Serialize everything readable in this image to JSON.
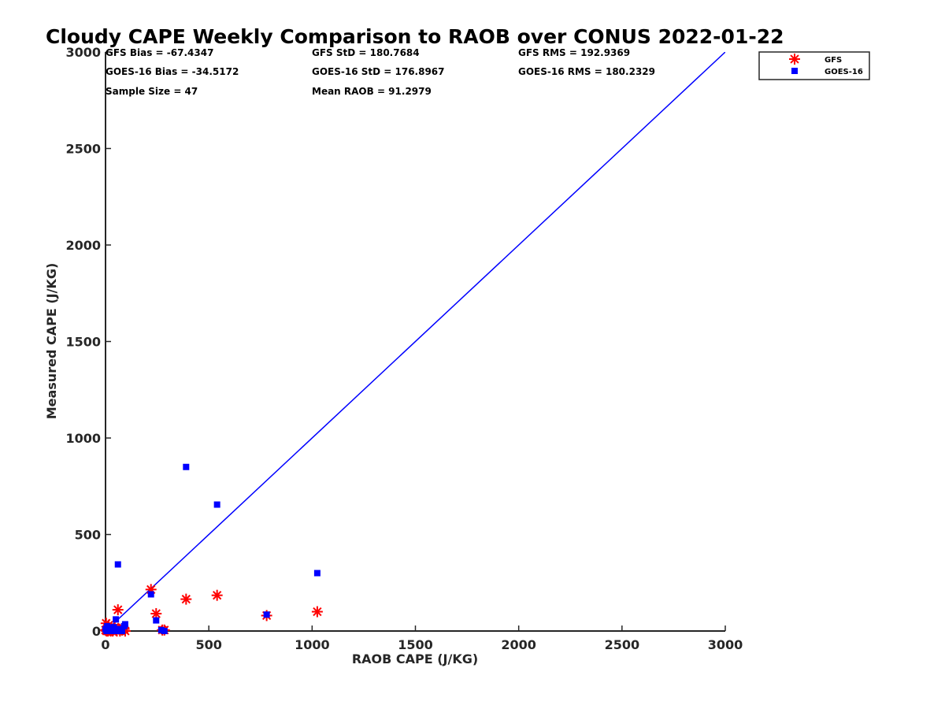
{
  "chart_data": {
    "type": "scatter",
    "title": "Cloudy CAPE Weekly Comparison to RAOB over CONUS 2022-01-22",
    "xlabel": "RAOB CAPE (J/KG)",
    "ylabel": "Measured CAPE (J/KG)",
    "xlim": [
      0,
      3000
    ],
    "ylim": [
      0,
      3000
    ],
    "x_ticks": [
      "0",
      "500",
      "1000",
      "1500",
      "2000",
      "2500",
      "3000"
    ],
    "y_ticks": [
      "0",
      "500",
      "1000",
      "1500",
      "2000",
      "2500",
      "3000"
    ],
    "grid": false,
    "legend_position": "top-right outside",
    "stats": [
      "GFS Bias = -67.4347",
      "GFS StD = 180.7684",
      "GFS RMS = 192.9369",
      "GOES-16 Bias = -34.5172",
      "GOES-16 StD = 176.8967",
      "GOES-16 RMS = 180.2329",
      "Sample Size = 47",
      "Mean RAOB = 91.2979"
    ],
    "reference_line": {
      "x": [
        0,
        3000
      ],
      "y": [
        0,
        3000
      ],
      "color": "#0000ff"
    },
    "series": [
      {
        "name": "GFS",
        "marker": "asterisk",
        "color": "#ff0000",
        "points": [
          [
            0,
            5
          ],
          [
            3,
            40
          ],
          [
            5,
            0
          ],
          [
            8,
            10
          ],
          [
            10,
            20
          ],
          [
            12,
            0
          ],
          [
            15,
            30
          ],
          [
            18,
            5
          ],
          [
            20,
            10
          ],
          [
            25,
            0
          ],
          [
            28,
            15
          ],
          [
            30,
            5
          ],
          [
            35,
            0
          ],
          [
            40,
            10
          ],
          [
            45,
            20
          ],
          [
            50,
            5
          ],
          [
            55,
            0
          ],
          [
            60,
            110
          ],
          [
            65,
            10
          ],
          [
            70,
            0
          ],
          [
            80,
            5
          ],
          [
            85,
            15
          ],
          [
            90,
            10
          ],
          [
            95,
            0
          ],
          [
            220,
            215
          ],
          [
            245,
            90
          ],
          [
            275,
            5
          ],
          [
            285,
            5
          ],
          [
            390,
            165
          ],
          [
            540,
            185
          ],
          [
            780,
            80
          ],
          [
            1025,
            100
          ]
        ]
      },
      {
        "name": "GOES-16",
        "marker": "square",
        "color": "#0000ff",
        "points": [
          [
            0,
            10
          ],
          [
            5,
            0
          ],
          [
            8,
            25
          ],
          [
            10,
            5
          ],
          [
            15,
            0
          ],
          [
            20,
            15
          ],
          [
            25,
            5
          ],
          [
            30,
            10
          ],
          [
            35,
            0
          ],
          [
            40,
            20
          ],
          [
            45,
            5
          ],
          [
            50,
            60
          ],
          [
            55,
            0
          ],
          [
            60,
            345
          ],
          [
            65,
            10
          ],
          [
            70,
            5
          ],
          [
            80,
            0
          ],
          [
            90,
            25
          ],
          [
            95,
            35
          ],
          [
            220,
            190
          ],
          [
            245,
            55
          ],
          [
            270,
            5
          ],
          [
            285,
            0
          ],
          [
            390,
            850
          ],
          [
            540,
            655
          ],
          [
            780,
            85
          ],
          [
            1025,
            300
          ]
        ]
      }
    ]
  }
}
